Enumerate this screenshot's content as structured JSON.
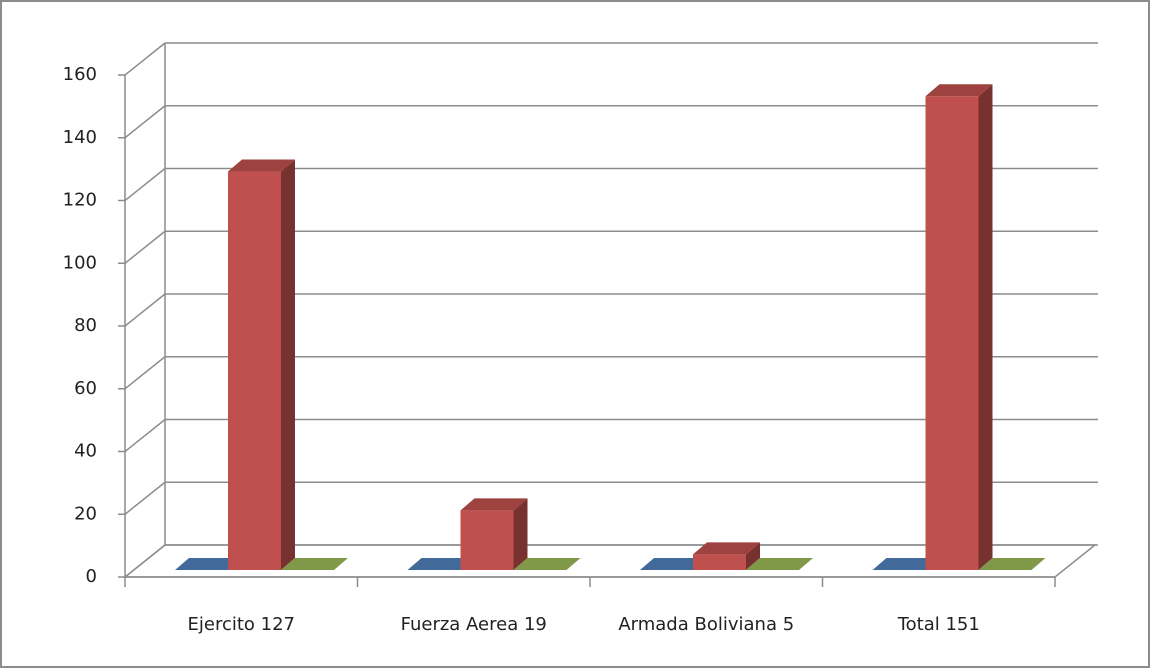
{
  "chart_data": {
    "type": "bar3d",
    "categories": [
      "Ejercito 127",
      "Fuerza Aerea 19",
      "Armada Boliviana 5",
      "Total 151"
    ],
    "series": [
      {
        "color": "#4f81bd",
        "values": [
          0,
          0,
          0,
          0
        ]
      },
      {
        "color": "#c0504d",
        "values": [
          127,
          19,
          5,
          151
        ]
      },
      {
        "color": "#9bbb59",
        "values": [
          0,
          0,
          0,
          0
        ]
      }
    ],
    "ylim": [
      0,
      160
    ],
    "yticks": [
      0,
      20,
      40,
      60,
      80,
      100,
      120,
      140,
      160
    ],
    "grid": true
  }
}
